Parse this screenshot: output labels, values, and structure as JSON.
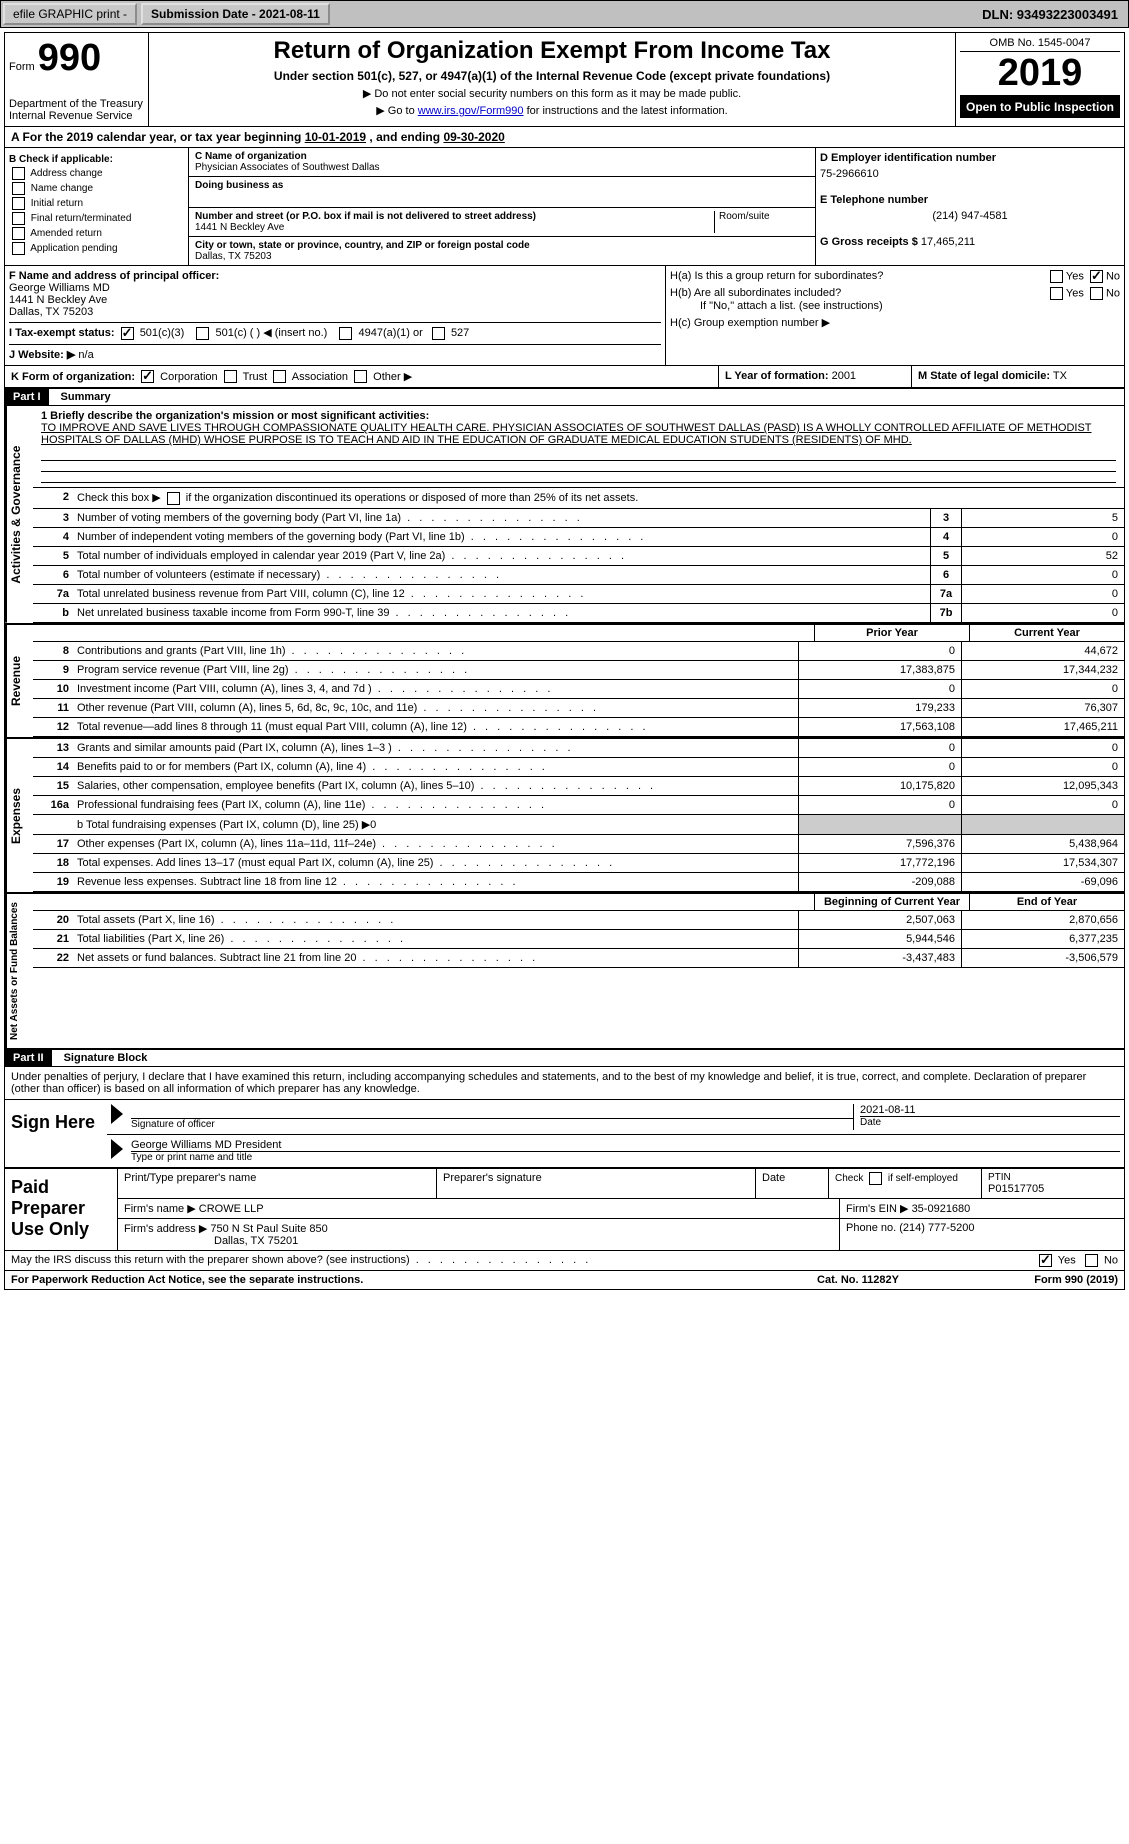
{
  "topbar": {
    "efile_label": "efile GRAPHIC print -",
    "submission_label": "Submission Date - 2021-08-11",
    "dln": "DLN: 93493223003491"
  },
  "header": {
    "form_label": "Form",
    "form_number": "990",
    "title": "Return of Organization Exempt From Income Tax",
    "subtitle": "Under section 501(c), 527, or 4947(a)(1) of the Internal Revenue Code (except private foundations)",
    "ssn_warning": "▶ Do not enter social security numbers on this form as it may be made public.",
    "goto": "▶ Go to www.irs.gov/Form990 for instructions and the latest information.",
    "goto_url": "www.irs.gov/Form990",
    "dept": "Department of the Treasury",
    "irs": "Internal Revenue Service",
    "omb": "OMB No. 1545-0047",
    "year": "2019",
    "open_public": "Open to Public Inspection"
  },
  "period": {
    "prefix": "A For the 2019 calendar year, or tax year beginning",
    "begin": "10-01-2019",
    "middle": ", and ending",
    "end": "09-30-2020"
  },
  "section_b": {
    "header": "B Check if applicable:",
    "options": [
      "Address change",
      "Name change",
      "Initial return",
      "Final return/terminated",
      "Amended return",
      "Application pending"
    ]
  },
  "section_c": {
    "name_label": "C Name of organization",
    "name": "Physician Associates of Southwest Dallas",
    "dba_label": "Doing business as",
    "addr_label": "Number and street (or P.O. box if mail is not delivered to street address)",
    "room_label": "Room/suite",
    "addr": "1441 N Beckley Ave",
    "city_label": "City or town, state or province, country, and ZIP or foreign postal code",
    "city": "Dallas, TX  75203"
  },
  "section_d": {
    "ein_label": "D Employer identification number",
    "ein": "75-2966610",
    "tel_label": "E Telephone number",
    "tel": "(214) 947-4581",
    "gross_label": "G Gross receipts $",
    "gross": "17,465,211"
  },
  "section_f": {
    "label": "F Name and address of principal officer:",
    "name": "George Williams MD",
    "addr1": "1441 N Beckley Ave",
    "addr2": "Dallas, TX  75203"
  },
  "section_h": {
    "ha_label": "H(a)  Is this a group return for subordinates?",
    "hb_label": "H(b)  Are all subordinates included?",
    "hb_note": "If \"No,\" attach a list. (see instructions)",
    "hc_label": "H(c)  Group exemption number ▶",
    "yes": "Yes",
    "no": "No"
  },
  "section_i": {
    "label": "I  Tax-exempt status:",
    "opt1": "501(c)(3)",
    "opt2": "501(c) (  ) ◀ (insert no.)",
    "opt3": "4947(a)(1) or",
    "opt4": "527"
  },
  "section_j": {
    "label": "J  Website: ▶",
    "value": "n/a"
  },
  "section_k": {
    "label": "K Form of organization:",
    "corp": "Corporation",
    "trust": "Trust",
    "assoc": "Association",
    "other": "Other ▶"
  },
  "section_l": {
    "label": "L Year of formation:",
    "value": "2001"
  },
  "section_m": {
    "label": "M State of legal domicile:",
    "value": "TX"
  },
  "part1": {
    "header": "Part I",
    "title": "Summary",
    "mission_label": "1  Briefly describe the organization's mission or most significant activities:",
    "mission": "TO IMPROVE AND SAVE LIVES THROUGH COMPASSIONATE QUALITY HEALTH CARE. PHYSICIAN ASSOCIATES OF SOUTHWEST DALLAS (PASD) IS A WHOLLY CONTROLLED AFFILIATE OF METHODIST HOSPITALS OF DALLAS (MHD) WHOSE PURPOSE IS TO TEACH AND AID IN THE EDUCATION OF GRADUATE MEDICAL EDUCATION STUDENTS (RESIDENTS) OF MHD.",
    "line2": "Check this box ▶     if the organization discontinued its operations or disposed of more than 25% of its net assets.",
    "line_b_fundraising": "b  Total fundraising expenses (Part IX, column (D), line 25) ▶0"
  },
  "governance": {
    "label": "Activities & Governance",
    "rows": [
      {
        "num": "3",
        "desc": "Number of voting members of the governing body (Part VI, line 1a)",
        "box": "3",
        "val": "5"
      },
      {
        "num": "4",
        "desc": "Number of independent voting members of the governing body (Part VI, line 1b)",
        "box": "4",
        "val": "0"
      },
      {
        "num": "5",
        "desc": "Total number of individuals employed in calendar year 2019 (Part V, line 2a)",
        "box": "5",
        "val": "52"
      },
      {
        "num": "6",
        "desc": "Total number of volunteers (estimate if necessary)",
        "box": "6",
        "val": "0"
      },
      {
        "num": "7a",
        "desc": "Total unrelated business revenue from Part VIII, column (C), line 12",
        "box": "7a",
        "val": "0"
      },
      {
        "num": "b",
        "desc": "Net unrelated business taxable income from Form 990-T, line 39",
        "box": "7b",
        "val": "0"
      }
    ]
  },
  "col_headers": {
    "prior": "Prior Year",
    "current": "Current Year"
  },
  "revenue": {
    "label": "Revenue",
    "rows": [
      {
        "num": "8",
        "desc": "Contributions and grants (Part VIII, line 1h)",
        "prior": "0",
        "current": "44,672"
      },
      {
        "num": "9",
        "desc": "Program service revenue (Part VIII, line 2g)",
        "prior": "17,383,875",
        "current": "17,344,232"
      },
      {
        "num": "10",
        "desc": "Investment income (Part VIII, column (A), lines 3, 4, and 7d )",
        "prior": "0",
        "current": "0"
      },
      {
        "num": "11",
        "desc": "Other revenue (Part VIII, column (A), lines 5, 6d, 8c, 9c, 10c, and 11e)",
        "prior": "179,233",
        "current": "76,307"
      },
      {
        "num": "12",
        "desc": "Total revenue—add lines 8 through 11 (must equal Part VIII, column (A), line 12)",
        "prior": "17,563,108",
        "current": "17,465,211"
      }
    ]
  },
  "expenses": {
    "label": "Expenses",
    "rows": [
      {
        "num": "13",
        "desc": "Grants and similar amounts paid (Part IX, column (A), lines 1–3 )",
        "prior": "0",
        "current": "0"
      },
      {
        "num": "14",
        "desc": "Benefits paid to or for members (Part IX, column (A), line 4)",
        "prior": "0",
        "current": "0"
      },
      {
        "num": "15",
        "desc": "Salaries, other compensation, employee benefits (Part IX, column (A), lines 5–10)",
        "prior": "10,175,820",
        "current": "12,095,343"
      },
      {
        "num": "16a",
        "desc": "Professional fundraising fees (Part IX, column (A), line 11e)",
        "prior": "0",
        "current": "0"
      },
      {
        "num": "17",
        "desc": "Other expenses (Part IX, column (A), lines 11a–11d, 11f–24e)",
        "prior": "7,596,376",
        "current": "5,438,964"
      },
      {
        "num": "18",
        "desc": "Total expenses. Add lines 13–17 (must equal Part IX, column (A), line 25)",
        "prior": "17,772,196",
        "current": "17,534,307"
      },
      {
        "num": "19",
        "desc": "Revenue less expenses. Subtract line 18 from line 12",
        "prior": "-209,088",
        "current": "-69,096"
      }
    ]
  },
  "netassets": {
    "label": "Net Assets or Fund Balances",
    "col_headers": {
      "begin": "Beginning of Current Year",
      "end": "End of Year"
    },
    "rows": [
      {
        "num": "20",
        "desc": "Total assets (Part X, line 16)",
        "begin": "2,507,063",
        "end": "2,870,656"
      },
      {
        "num": "21",
        "desc": "Total liabilities (Part X, line 26)",
        "begin": "5,944,546",
        "end": "6,377,235"
      },
      {
        "num": "22",
        "desc": "Net assets or fund balances. Subtract line 21 from line 20",
        "begin": "-3,437,483",
        "end": "-3,506,579"
      }
    ]
  },
  "part2": {
    "header": "Part II",
    "title": "Signature Block",
    "penalties": "Under penalties of perjury, I declare that I have examined this return, including accompanying schedules and statements, and to the best of my knowledge and belief, it is true, correct, and complete. Declaration of preparer (other than officer) is based on all information of which preparer has any knowledge.",
    "sign_here": "Sign Here",
    "sig_label": "Signature of officer",
    "date_label": "Date",
    "date_value": "2021-08-11",
    "name_title": "George Williams MD  President",
    "name_label": "Type or print name and title"
  },
  "paid_preparer": {
    "label": "Paid Preparer Use Only",
    "print_name": "Print/Type preparer's name",
    "sig": "Preparer's signature",
    "date": "Date",
    "check_label": "Check       if self-employed",
    "ptin_label": "PTIN",
    "ptin": "P01517705",
    "firm_name_label": "Firm's name    ▶",
    "firm_name": "CROWE LLP",
    "firm_ein_label": "Firm's EIN ▶",
    "firm_ein": "35-0921680",
    "firm_addr_label": "Firm's address ▶",
    "firm_addr": "750 N St Paul Suite 850",
    "firm_city": "Dallas, TX  75201",
    "phone_label": "Phone no.",
    "phone": "(214) 777-5200"
  },
  "discuss": {
    "question": "May the IRS discuss this return with the preparer shown above? (see instructions)",
    "yes": "Yes",
    "no": "No"
  },
  "footer": {
    "paperwork": "For Paperwork Reduction Act Notice, see the separate instructions.",
    "cat": "Cat. No. 11282Y",
    "form": "Form 990 (2019)"
  }
}
